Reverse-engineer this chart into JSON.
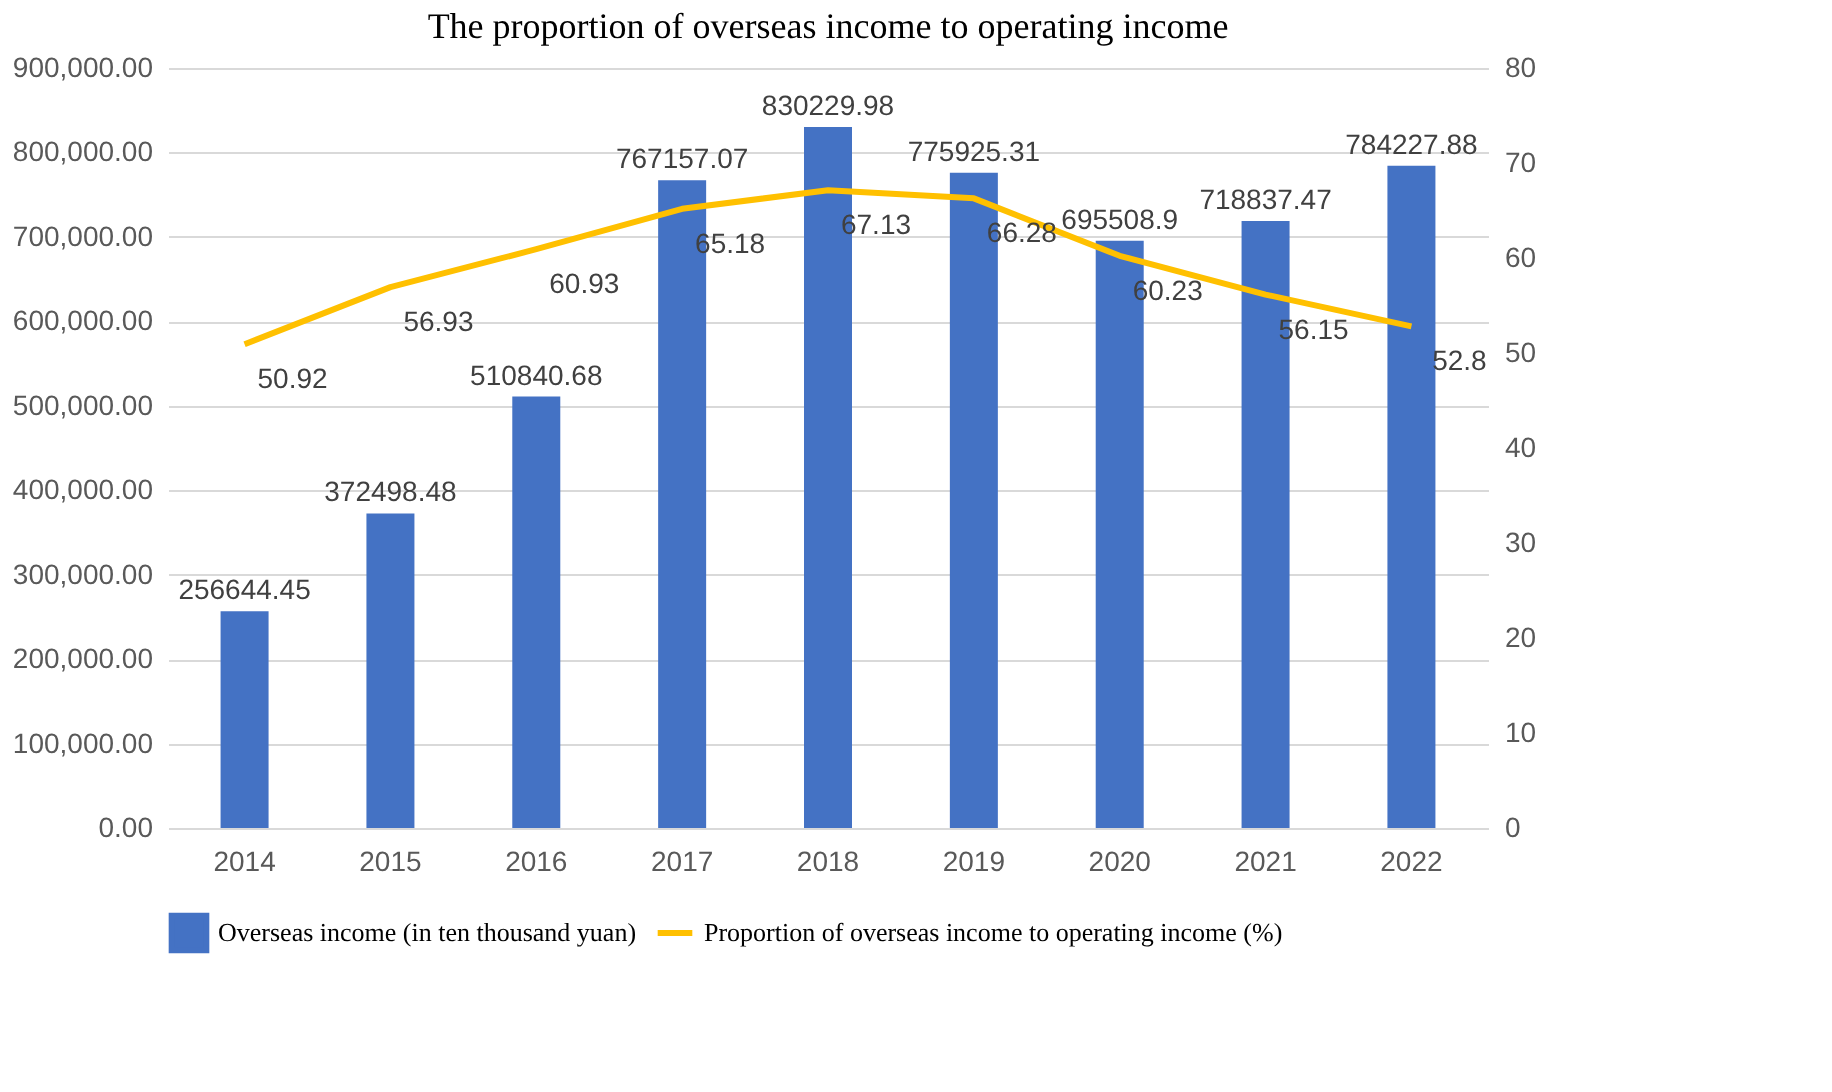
{
  "chart_data": {
    "type": "bar",
    "title": "The proportion of overseas income to operating income",
    "categories": [
      "2014",
      "2015",
      "2016",
      "2017",
      "2018",
      "2019",
      "2020",
      "2021",
      "2022"
    ],
    "series": [
      {
        "name": "Overseas income (in ten thousand yuan)",
        "color": "#4472c4",
        "values": [
          256644.45,
          372498.48,
          510840.68,
          767157.07,
          830229.98,
          775925.31,
          695508.9,
          718837.47,
          784227.88
        ]
      },
      {
        "name": "Proportion of overseas income to operating income (%)",
        "color": "#ffc000",
        "type": "line",
        "axis": "y2",
        "values": [
          50.92,
          56.93,
          60.93,
          65.18,
          67.13,
          66.28,
          60.23,
          56.15,
          52.8
        ]
      }
    ],
    "ylim": [
      0,
      900000
    ],
    "yticks": [
      {
        "value": 0,
        "label": "0.00"
      },
      {
        "value": 100000,
        "label": "100,000.00"
      },
      {
        "value": 200000,
        "label": "200,000.00"
      },
      {
        "value": 300000,
        "label": "300,000.00"
      },
      {
        "value": 400000,
        "label": "400,000.00"
      },
      {
        "value": 500000,
        "label": "500,000.00"
      },
      {
        "value": 600000,
        "label": "600,000.00"
      },
      {
        "value": 700000,
        "label": "700,000.00"
      },
      {
        "value": 800000,
        "label": "800,000.00"
      },
      {
        "value": 900000,
        "label": "900,000.00"
      }
    ],
    "y2lim": [
      0,
      80
    ],
    "y2ticks": [
      0,
      10,
      20,
      30,
      40,
      50,
      60,
      70,
      80
    ],
    "grid": "y",
    "legend": "bottom",
    "data_labels": true,
    "marker": "none",
    "line_style": "solid"
  }
}
